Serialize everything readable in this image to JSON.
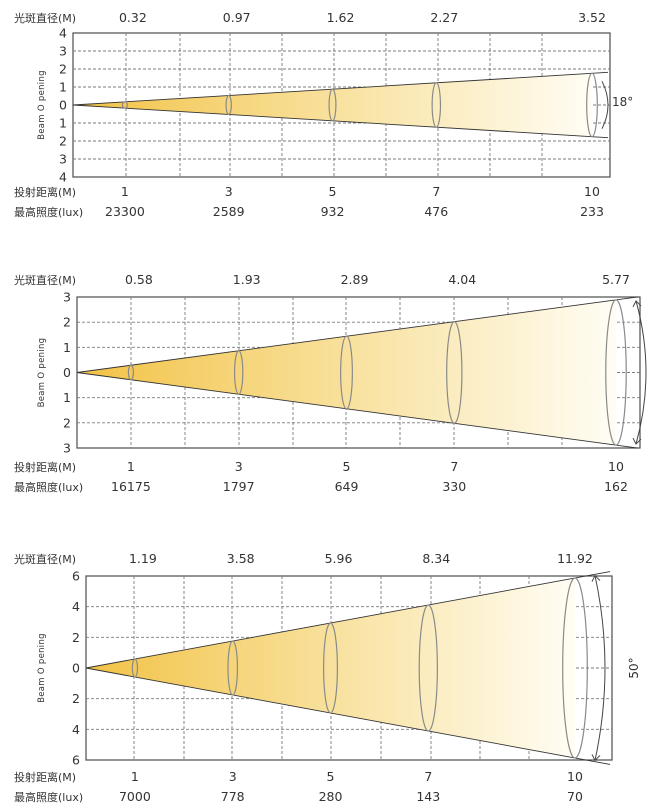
{
  "labels": {
    "diameter": "光斑直径(M)",
    "distance": "投射距离(M)",
    "illuminance": "最高照度(lux)",
    "beam_opening": "Beam O pening"
  },
  "colors": {
    "beam_start": "#f2c245",
    "beam_end": "#fffdf4",
    "grid": "#7a7a7a",
    "frame": "#4d4d4d",
    "text": "#333333"
  },
  "chart_data": [
    {
      "type": "diagram",
      "angle_label": "18°",
      "y_ticks": [
        "4",
        "3",
        "2",
        "1",
        "0",
        "1",
        "2",
        "3",
        "4"
      ],
      "y_max": 4,
      "distance_max": 10,
      "points": [
        {
          "distance": "1",
          "diameter": "0.32",
          "lux": "23300"
        },
        {
          "distance": "3",
          "diameter": "0.97",
          "lux": "2589"
        },
        {
          "distance": "5",
          "diameter": "1.62",
          "lux": "932"
        },
        {
          "distance": "7",
          "diameter": "2.27",
          "lux": "476"
        },
        {
          "distance": "10",
          "diameter": "3.52",
          "lux": "233"
        }
      ]
    },
    {
      "type": "diagram",
      "angle_label": "",
      "y_ticks": [
        "3",
        "2",
        "1",
        "0",
        "1",
        "2",
        "3"
      ],
      "y_max": 3,
      "distance_max": 10,
      "points": [
        {
          "distance": "1",
          "diameter": "0.58",
          "lux": "16175"
        },
        {
          "distance": "3",
          "diameter": "1.93",
          "lux": "1797"
        },
        {
          "distance": "5",
          "diameter": "2.89",
          "lux": "649"
        },
        {
          "distance": "7",
          "diameter": "4.04",
          "lux": "330"
        },
        {
          "distance": "10",
          "diameter": "5.77",
          "lux": "162"
        }
      ]
    },
    {
      "type": "diagram",
      "angle_label": "50°",
      "y_ticks": [
        "6",
        "4",
        "2",
        "0",
        "2",
        "4",
        "6"
      ],
      "y_max": 6,
      "distance_max": 10,
      "points": [
        {
          "distance": "1",
          "diameter": "1.19",
          "lux": "7000"
        },
        {
          "distance": "3",
          "diameter": "3.58",
          "lux": "778"
        },
        {
          "distance": "5",
          "diameter": "5.96",
          "lux": "280"
        },
        {
          "distance": "7",
          "diameter": "8.34",
          "lux": "143"
        },
        {
          "distance": "10",
          "diameter": "11.92",
          "lux": "70"
        }
      ]
    }
  ]
}
